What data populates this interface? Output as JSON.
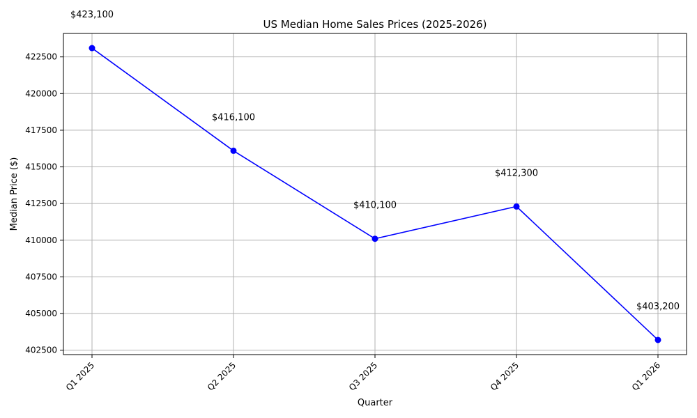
{
  "chart_data": {
    "type": "line",
    "title": "US Median Home Sales Prices (2025-2026)",
    "xlabel": "Quarter",
    "ylabel": "Median Price ($)",
    "categories": [
      "Q1 2025",
      "Q2 2025",
      "Q3 2025",
      "Q4 2025",
      "Q1 2026"
    ],
    "series": [
      {
        "values": [
          423100,
          416100,
          410100,
          412300,
          403200
        ],
        "labels": [
          "$423,100",
          "$416,100",
          "$410,100",
          "$412,300",
          "$403,200"
        ],
        "color": "#0000ff"
      }
    ],
    "ylim": [
      402200,
      424100
    ],
    "yticks": [
      402500,
      405000,
      407500,
      410000,
      412500,
      415000,
      417500,
      420000,
      422500
    ],
    "ytick_labels": [
      "402500",
      "405000",
      "407500",
      "410000",
      "412500",
      "415000",
      "417500",
      "420000",
      "422500"
    ],
    "grid": true
  }
}
